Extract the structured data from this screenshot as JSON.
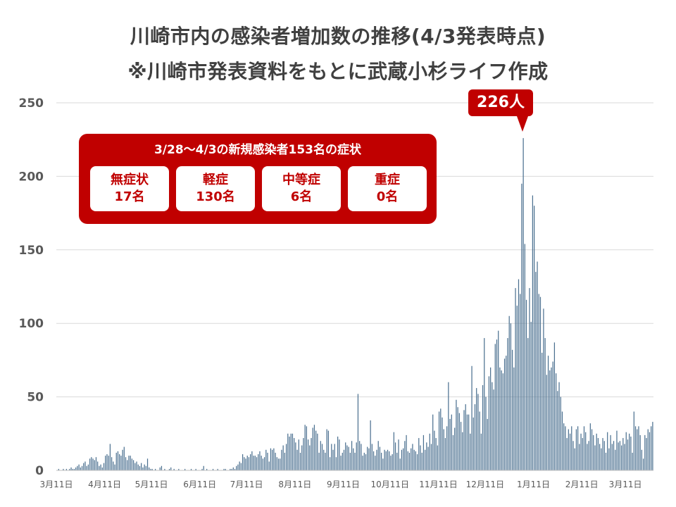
{
  "titles": {
    "line1": "川崎市内の感染者増加数の推移(4/3発表時点)",
    "line2": "※川崎市発表資料をもとに武蔵小杉ライフ作成"
  },
  "summary": {
    "title": "3/28〜4/3の新規感染者153名の症状",
    "items": [
      {
        "label": "無症状",
        "value": "17名"
      },
      {
        "label": "軽症",
        "value": "130名"
      },
      {
        "label": "中等症",
        "value": "6名"
      },
      {
        "label": "重症",
        "value": "0名"
      }
    ]
  },
  "callout": {
    "label": "226人"
  },
  "colors": {
    "accent": "#c00000",
    "bars": "#4a6f8f",
    "grid": "#d9d9d9",
    "axis": "#595959"
  },
  "chart_data": {
    "type": "bar",
    "ylim": [
      0,
      250
    ],
    "yticks": [
      0,
      50,
      100,
      150,
      200,
      250
    ],
    "grid": true,
    "x_start_date": "3月11日",
    "xtick_labels": [
      "3月11日",
      "4月11日",
      "5月11日",
      "6月11日",
      "7月11日",
      "8月11日",
      "9月11日",
      "10月11日",
      "11月11日",
      "12月11日",
      "1月11日",
      "2月11日",
      "3月11日"
    ],
    "xtick_day_index": [
      0,
      31,
      61,
      92,
      122,
      153,
      184,
      214,
      245,
      275,
      306,
      337,
      365
    ],
    "peak": {
      "day_index": 305,
      "value": 226
    },
    "values": [
      0,
      1,
      0,
      0,
      1,
      0,
      1,
      0,
      1,
      2,
      1,
      1,
      2,
      3,
      4,
      2,
      3,
      5,
      6,
      3,
      4,
      8,
      9,
      8,
      7,
      9,
      6,
      3,
      4,
      2,
      5,
      10,
      11,
      10,
      18,
      9,
      6,
      4,
      12,
      13,
      11,
      10,
      14,
      16,
      9,
      7,
      10,
      10,
      8,
      7,
      5,
      6,
      4,
      3,
      5,
      2,
      4,
      3,
      8,
      2,
      1,
      1,
      0,
      1,
      0,
      0,
      2,
      3,
      0,
      1,
      0,
      0,
      1,
      2,
      0,
      1,
      0,
      0,
      1,
      0,
      0,
      0,
      1,
      0,
      0,
      0,
      1,
      0,
      0,
      1,
      0,
      0,
      0,
      1,
      3,
      0,
      1,
      0,
      0,
      0,
      1,
      0,
      0,
      1,
      0,
      0,
      0,
      1,
      1,
      0,
      0,
      1,
      1,
      2,
      1,
      3,
      4,
      6,
      5,
      11,
      9,
      8,
      10,
      9,
      11,
      13,
      10,
      10,
      9,
      11,
      13,
      10,
      8,
      9,
      14,
      12,
      6,
      15,
      14,
      15,
      12,
      9,
      8,
      8,
      14,
      17,
      12,
      18,
      25,
      23,
      25,
      25,
      22,
      19,
      14,
      21,
      12,
      17,
      22,
      31,
      30,
      21,
      17,
      22,
      29,
      31,
      27,
      25,
      12,
      20,
      18,
      14,
      12,
      28,
      27,
      9,
      18,
      14,
      18,
      9,
      23,
      21,
      10,
      12,
      14,
      19,
      17,
      16,
      12,
      20,
      15,
      12,
      19,
      52,
      20,
      18,
      10,
      12,
      11,
      16,
      15,
      34,
      18,
      13,
      10,
      14,
      20,
      16,
      12,
      8,
      14,
      13,
      14,
      13,
      10,
      11,
      26,
      19,
      12,
      21,
      8,
      14,
      15,
      20,
      24,
      13,
      12,
      15,
      18,
      14,
      13,
      11,
      22,
      17,
      12,
      24,
      14,
      19,
      16,
      25,
      18,
      38,
      27,
      22,
      17,
      40,
      42,
      36,
      28,
      22,
      30,
      60,
      35,
      38,
      24,
      29,
      48,
      43,
      39,
      33,
      26,
      41,
      45,
      38,
      38,
      25,
      71,
      36,
      45,
      56,
      52,
      40,
      25,
      58,
      90,
      50,
      35,
      64,
      70,
      60,
      55,
      86,
      89,
      95,
      70,
      68,
      66,
      76,
      78,
      90,
      105,
      100,
      82,
      70,
      124,
      112,
      130,
      120,
      195,
      226,
      154,
      116,
      90,
      124,
      101,
      187,
      180,
      135,
      142,
      120,
      118,
      80,
      110,
      90,
      65,
      78,
      68,
      70,
      74,
      87,
      66,
      54,
      60,
      50,
      40,
      32,
      30,
      22,
      28,
      25,
      30,
      20,
      15,
      28,
      30,
      18,
      25,
      22,
      30,
      26,
      18,
      20,
      32,
      28,
      24,
      17,
      25,
      22,
      18,
      15,
      22,
      20,
      12,
      26,
      15,
      24,
      18,
      20,
      14,
      27,
      19,
      20,
      17,
      22,
      18,
      26,
      21,
      25,
      23,
      12,
      40,
      30,
      28,
      30,
      24,
      14,
      8,
      24,
      22,
      28,
      26,
      30,
      33
    ]
  }
}
